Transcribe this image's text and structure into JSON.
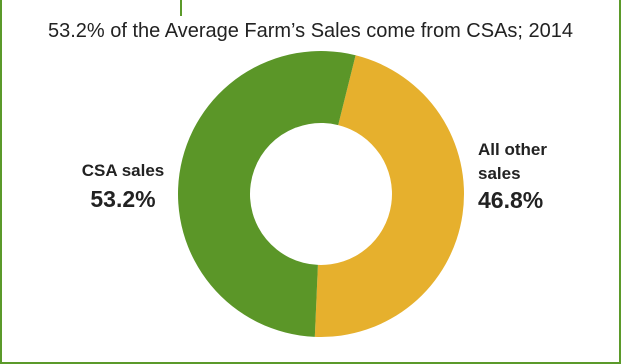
{
  "chart_data": {
    "type": "pie",
    "title": "53.2% of the Average Farm’s Sales come from CSAs; 2014",
    "slices": [
      {
        "name_lines": [
          "All other",
          "sales"
        ],
        "value": 46.8,
        "label": "46.8%",
        "color": "#e6b02d"
      },
      {
        "name_lines": [
          "CSA sales"
        ],
        "value": 53.2,
        "label": "53.2%",
        "color": "#5b9628"
      }
    ],
    "donut": true
  },
  "colors": {
    "frame": "#5b9a2a",
    "background": "#ffffff"
  }
}
